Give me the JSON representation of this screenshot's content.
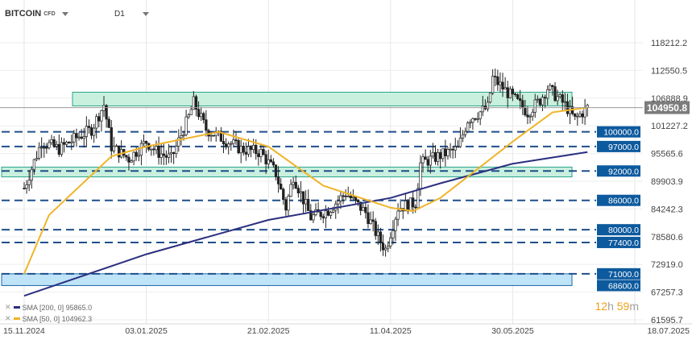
{
  "header": {
    "symbol": "BITCOIN",
    "symbol_tag": "CFD",
    "timeframe": "D1"
  },
  "indicators": [
    {
      "label": "SMA [200, 0]",
      "value": "95865.0",
      "color": "#2b2f7f"
    },
    {
      "label": "SMA [50, 0]",
      "value": "104962.3",
      "color": "#f0b429"
    }
  ],
  "timer": {
    "hours": "12",
    "h_unit": "h",
    "minutes": "59",
    "m_unit": "m"
  },
  "chart_data": {
    "type": "candlestick",
    "instrument": "BITCOIN",
    "price_axis_labels": [
      "118212.2",
      "112550.5",
      "106888.9",
      "101227.2",
      "95565.6",
      "89903.9",
      "84242.3",
      "78580.6",
      "72919.0",
      "67257.3",
      "61595.7"
    ],
    "date_axis_labels": [
      "15.11.2024",
      "03.01.2025",
      "21.02.2025",
      "11.04.2025",
      "30.05.2025",
      "18.07.2025"
    ],
    "current_price": "104950.8",
    "horizontal_levels": [
      {
        "label": "100000.0",
        "price": 100000
      },
      {
        "label": "97000.0",
        "price": 97000
      },
      {
        "label": "92000.0",
        "price": 92000
      },
      {
        "label": "86000.0",
        "price": 86000
      },
      {
        "label": "80000.0",
        "price": 80000
      },
      {
        "label": "77400.0",
        "price": 77400
      },
      {
        "label": "71000.0",
        "price": 71000
      },
      {
        "label": "68600.0",
        "price": 68600
      }
    ],
    "zones": [
      {
        "from": 105300,
        "to": 108100,
        "color": "#c9f0de"
      },
      {
        "from": 90800,
        "to": 92800,
        "color": "#c9f0de"
      },
      {
        "from": 68600,
        "to": 71000,
        "color": "#bfe3f7"
      }
    ],
    "candles_close_path": [
      [
        "2024-11-15",
        88500
      ],
      [
        "2024-11-22",
        98000
      ],
      [
        "2024-11-29",
        96500
      ],
      [
        "2024-12-05",
        98500
      ],
      [
        "2024-12-12",
        100500
      ],
      [
        "2024-12-17",
        105500
      ],
      [
        "2024-12-20",
        97000
      ],
      [
        "2024-12-27",
        94500
      ],
      [
        "2025-01-03",
        98000
      ],
      [
        "2025-01-07",
        96000
      ],
      [
        "2025-01-13",
        94500
      ],
      [
        "2025-01-20",
        103000
      ],
      [
        "2025-01-22",
        106000
      ],
      [
        "2025-01-27",
        100500
      ],
      [
        "2025-02-03",
        98500
      ],
      [
        "2025-02-10",
        96500
      ],
      [
        "2025-02-18",
        95800
      ],
      [
        "2025-02-24",
        91500
      ],
      [
        "2025-02-28",
        84500
      ],
      [
        "2025-03-03",
        91000
      ],
      [
        "2025-03-10",
        82500
      ],
      [
        "2025-03-17",
        84000
      ],
      [
        "2025-03-24",
        87500
      ],
      [
        "2025-04-01",
        83500
      ],
      [
        "2025-04-07",
        77500
      ],
      [
        "2025-04-09",
        76000
      ],
      [
        "2025-04-14",
        84500
      ],
      [
        "2025-04-21",
        85500
      ],
      [
        "2025-04-23",
        93500
      ],
      [
        "2025-04-30",
        95000
      ],
      [
        "2025-05-08",
        96500
      ],
      [
        "2025-05-12",
        102500
      ],
      [
        "2025-05-20",
        105000
      ],
      [
        "2025-05-22",
        111000
      ],
      [
        "2025-05-29",
        107500
      ],
      [
        "2025-06-05",
        104000
      ],
      [
        "2025-06-10",
        106500
      ],
      [
        "2025-06-13",
        109000
      ],
      [
        "2025-06-20",
        105500
      ],
      [
        "2025-06-24",
        102500
      ],
      [
        "2025-06-26",
        103500
      ],
      [
        "2025-06-29",
        104950.8
      ]
    ],
    "sma_200_path": [
      [
        "2024-11-15",
        66500
      ],
      [
        "2025-01-03",
        75000
      ],
      [
        "2025-02-21",
        82000
      ],
      [
        "2025-04-11",
        86500
      ],
      [
        "2025-05-01",
        89500
      ],
      [
        "2025-05-30",
        93500
      ],
      [
        "2025-06-29",
        95865.0
      ]
    ],
    "sma_50_path": [
      [
        "2024-11-15",
        71000
      ],
      [
        "2024-11-25",
        83000
      ],
      [
        "2024-12-20",
        95000
      ],
      [
        "2025-01-03",
        97000
      ],
      [
        "2025-02-01",
        100000
      ],
      [
        "2025-02-21",
        97000
      ],
      [
        "2025-03-15",
        89000
      ],
      [
        "2025-04-11",
        84500
      ],
      [
        "2025-04-20",
        83800
      ],
      [
        "2025-05-01",
        86500
      ],
      [
        "2025-05-30",
        98000
      ],
      [
        "2025-06-15",
        104000
      ],
      [
        "2025-06-29",
        104962.3
      ]
    ]
  }
}
